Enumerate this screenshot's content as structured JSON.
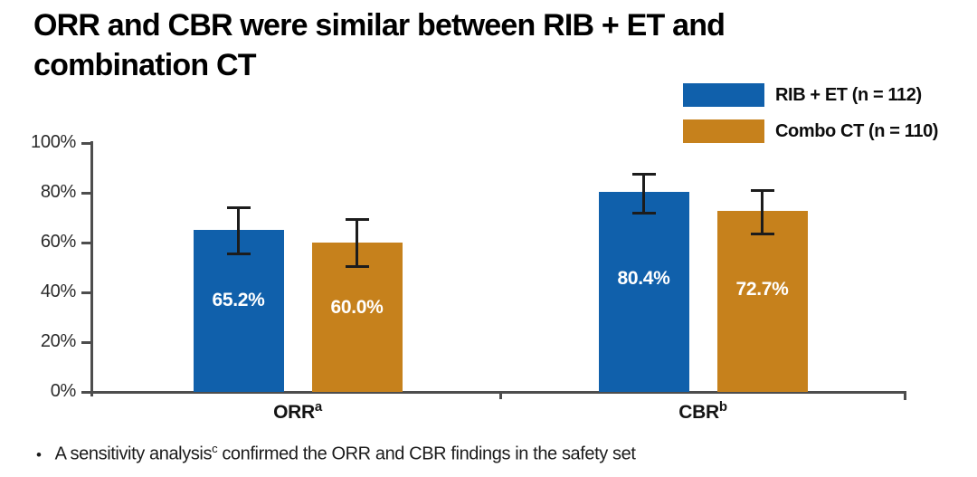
{
  "title": {
    "line1": "ORR and CBR were similar between RIB + ET and",
    "line2": "combination CT",
    "full": "ORR and CBR were similar between RIB + ET and combination CT"
  },
  "legend": {
    "items": [
      {
        "label": "RIB + ET (n = 112)",
        "color": "#1060AB"
      },
      {
        "label": "Combo CT (n = 110)",
        "color": "#C6811C"
      }
    ]
  },
  "chart_data": {
    "type": "bar",
    "title": "ORR and CBR were similar between RIB + ET and combination CT",
    "categories": [
      "ORR",
      "CBR"
    ],
    "category_superscripts": [
      "a",
      "b"
    ],
    "series": [
      {
        "name": "RIB + ET (n = 112)",
        "color": "#1060AB",
        "values": [
          65.2,
          80.4
        ],
        "labels": [
          "65.2%",
          "80.4%"
        ],
        "error_low": [
          55.6,
          71.8
        ],
        "error_high": [
          74.0,
          87.3
        ]
      },
      {
        "name": "Combo CT (n = 110)",
        "color": "#C6811C",
        "values": [
          60.0,
          72.7
        ],
        "labels": [
          "60.0%",
          "72.7%"
        ],
        "error_low": [
          50.2,
          63.4
        ],
        "error_high": [
          69.2,
          80.8
        ]
      }
    ],
    "xlabel": "",
    "ylabel": "",
    "ylim": [
      0,
      100
    ],
    "yticks": [
      0,
      20,
      40,
      60,
      80,
      100
    ],
    "ytick_labels": [
      "0%",
      "20%",
      "40%",
      "60%",
      "80%",
      "100%"
    ],
    "grid": false,
    "error_bars": true,
    "legend_position": "top-right",
    "bar_label_color": "#ffffff",
    "axis_color": "#4d4d4d",
    "error_bar_color": "#1c1c1c"
  },
  "footer": {
    "bullet": "•",
    "text": "A sensitivity analysis",
    "sup": "c",
    "text_after": " confirmed the ORR and CBR findings in the safety set"
  }
}
